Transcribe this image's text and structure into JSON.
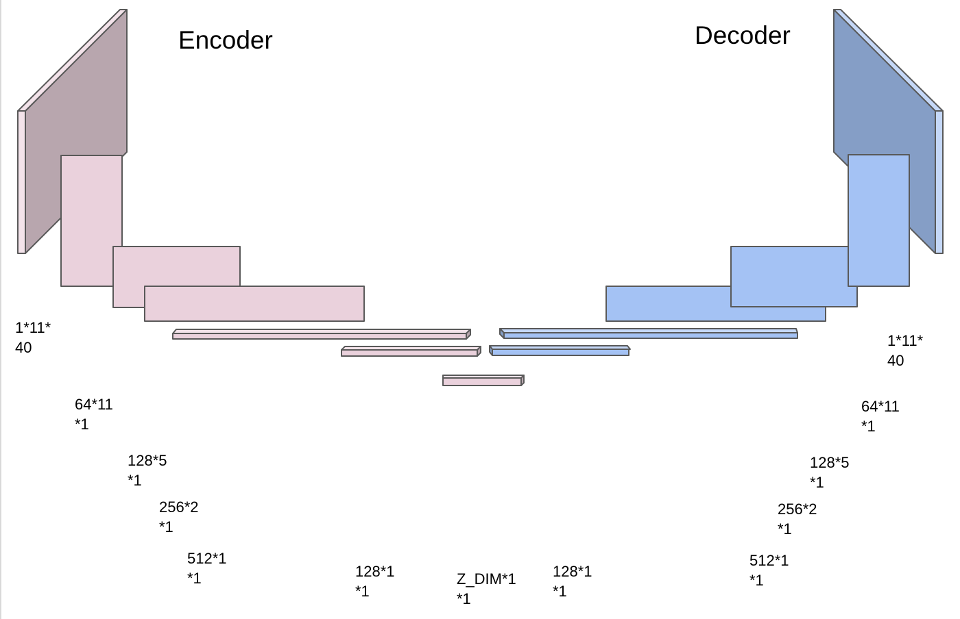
{
  "diagram": {
    "encoder_title": "Encoder",
    "decoder_title": "Decoder",
    "colors": {
      "encoder_front": "#ead1dc",
      "encoder_side": "#b8a6ae",
      "encoder_top": "#f3e3ea",
      "decoder_front": "#a4c2f4",
      "decoder_side": "#859ec6",
      "decoder_top": "#c5d8f8",
      "outline": "#595959"
    },
    "encoder_labels": [
      {
        "line1": "1*11*",
        "line2": "40"
      },
      {
        "line1": "64*11",
        "line2": "*1"
      },
      {
        "line1": "128*5",
        "line2": "*1"
      },
      {
        "line1": "256*2",
        "line2": "*1"
      },
      {
        "line1": "512*1",
        "line2": "*1"
      },
      {
        "line1": "128*1",
        "line2": "*1"
      }
    ],
    "latient_label": {
      "line1": "Z_DIM*1",
      "line2": "*1"
    },
    "decoder_labels": [
      {
        "line1": "128*1",
        "line2": "*1"
      },
      {
        "line1": "512*1",
        "line2": "*1"
      },
      {
        "line1": "256*2",
        "line2": "*1"
      },
      {
        "line1": "128*5",
        "line2": "*1"
      },
      {
        "line1": "64*11",
        "line2": "*1"
      },
      {
        "line1": "1*11*",
        "line2": "40"
      }
    ]
  }
}
